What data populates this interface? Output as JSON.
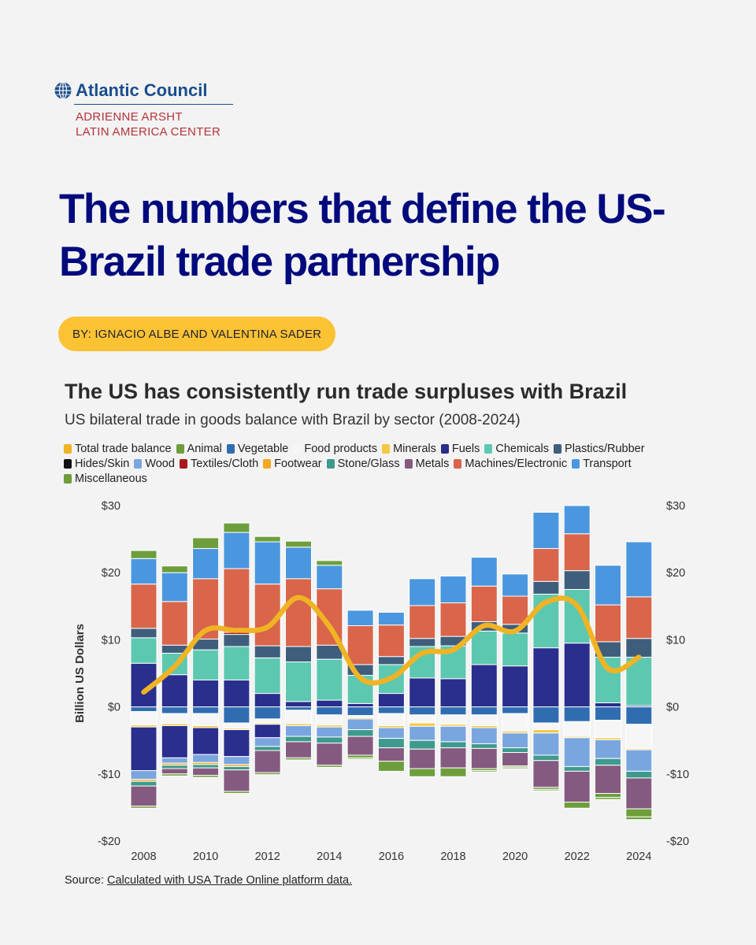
{
  "header": {
    "org_name": "Atlantic Council",
    "center_line1": "ADRIENNE ARSHT",
    "center_line2": "LATIN AMERICA CENTER",
    "headline": "The numbers that define the US-Brazil trade partnership",
    "byline": "BY: IGNACIO ALBE AND VALENTINA SADER"
  },
  "colors": {
    "brand_blue": "#1a4e8c",
    "headline": "#000a7d",
    "accent_red": "#b3343a",
    "byline_bg": "#fbc234",
    "balance_line": "#f0b323"
  },
  "chart_data": {
    "type": "bar",
    "stacked": true,
    "title": "The US has consistently run trade surpluses with Brazil",
    "subtitle": "US bilateral trade in goods balance with Brazil by sector (2008-2024)",
    "ylabel": "Billion US Dollars",
    "ylim": [
      -20,
      30
    ],
    "yticks": [
      -20,
      -10,
      0,
      10,
      20,
      30
    ],
    "ytick_labels": [
      "-$20",
      "-$10",
      "$0",
      "$10",
      "$20",
      "$30"
    ],
    "x_tick_labels": [
      "2008",
      "2010",
      "2012",
      "2014",
      "2016",
      "2018",
      "2020",
      "2022",
      "2024"
    ],
    "categories": [
      2008,
      2009,
      2010,
      2011,
      2012,
      2013,
      2014,
      2015,
      2016,
      2017,
      2018,
      2019,
      2020,
      2021,
      2022,
      2023,
      2024
    ],
    "legend_position": "top-left",
    "legend": [
      {
        "name": "Total trade balance",
        "color": "#f0b323"
      },
      {
        "name": "Animal",
        "color": "#6e9e3c"
      },
      {
        "name": "Vegetable",
        "color": "#2f6db0"
      },
      {
        "name": "Food products",
        "color": "#f6f6f6"
      },
      {
        "name": "Minerals",
        "color": "#f5c842"
      },
      {
        "name": "Fuels",
        "color": "#2a2e8c"
      },
      {
        "name": "Chemicals",
        "color": "#5dc8b0"
      },
      {
        "name": "Plastics/Rubber",
        "color": "#3e5e7c"
      },
      {
        "name": "Hides/Skin",
        "color": "#111111"
      },
      {
        "name": "Wood",
        "color": "#7aa6e0"
      },
      {
        "name": "Textiles/Cloth",
        "color": "#a8191c"
      },
      {
        "name": "Footwear",
        "color": "#f5a623"
      },
      {
        "name": "Stone/Glass",
        "color": "#3e9a8c"
      },
      {
        "name": "Metals",
        "color": "#855a80"
      },
      {
        "name": "Machines/Electronic",
        "color": "#d9654a"
      },
      {
        "name": "Transport",
        "color": "#4a97e0"
      },
      {
        "name": "Miscellaneous",
        "color": "#6e9e3c"
      }
    ],
    "series": [
      {
        "name": "Vegetable",
        "values": [
          -0.7,
          -1.0,
          -1.0,
          -2.4,
          -1.8,
          -0.5,
          -1.2,
          -1.3,
          -1.0,
          -1.2,
          -1.2,
          -1.2,
          -1.0,
          -2.4,
          -2.2,
          -2.0,
          -2.6
        ]
      },
      {
        "name": "Food products",
        "values": [
          -2.0,
          -1.5,
          -1.8,
          -0.8,
          -0.6,
          -2.0,
          -1.5,
          -0.3,
          -1.8,
          -1.2,
          -1.4,
          -1.6,
          -2.6,
          -1.0,
          -2.2,
          -2.6,
          -3.6
        ]
      },
      {
        "name": "Minerals",
        "values": [
          -0.3,
          -0.3,
          -0.3,
          -0.2,
          -0.2,
          -0.3,
          -0.3,
          -0.2,
          -0.3,
          -0.5,
          -0.3,
          -0.3,
          -0.3,
          -0.5,
          -0.2,
          -0.3,
          -0.2
        ]
      },
      {
        "name": "Fuels",
        "values": [
          6.5,
          4.8,
          4.0,
          4.0,
          2.0,
          0.8,
          1.0,
          0.5,
          2.0,
          4.3,
          4.2,
          6.3,
          6.1,
          8.8,
          9.5,
          0.6,
          0.2
        ]
      },
      {
        "name": "Fuels",
        "values": [
          -6.5,
          -4.8,
          -4.0,
          -4.0,
          -2.0,
          0,
          0,
          0,
          0,
          0,
          0,
          0,
          0,
          0,
          0,
          0,
          0
        ]
      },
      {
        "name": "Chemicals",
        "values": [
          3.8,
          3.2,
          4.5,
          5.0,
          5.3,
          5.9,
          6.1,
          4.2,
          4.3,
          4.7,
          4.9,
          5.0,
          4.9,
          8.0,
          8.0,
          6.8,
          7.2
        ]
      },
      {
        "name": "Plastics/Rubber",
        "values": [
          1.4,
          1.2,
          1.6,
          1.8,
          1.8,
          2.3,
          2.1,
          1.6,
          1.2,
          1.2,
          1.4,
          1.4,
          1.3,
          1.9,
          2.8,
          2.3,
          2.8
        ]
      },
      {
        "name": "Textiles/Cloth",
        "values": [
          0,
          0,
          0,
          0.3,
          0,
          0,
          0,
          0,
          0,
          0,
          0,
          0,
          0,
          0,
          0,
          0,
          0
        ]
      },
      {
        "name": "Wood",
        "values": [
          -1.3,
          -0.8,
          -1.2,
          -1.2,
          -1.3,
          -1.6,
          -1.5,
          -1.6,
          -1.6,
          -2.1,
          -2.3,
          -2.4,
          -2.2,
          -3.3,
          -4.3,
          -2.8,
          -3.2
        ]
      },
      {
        "name": "Footwear",
        "values": [
          -0.3,
          -0.3,
          -0.3,
          -0.3,
          0,
          0,
          0,
          0,
          0,
          0,
          0,
          0,
          0,
          0,
          0,
          0,
          0
        ]
      },
      {
        "name": "Stone/Glass",
        "values": [
          -0.7,
          -0.5,
          -0.5,
          -0.5,
          -0.6,
          -0.8,
          -0.9,
          -1.0,
          -1.4,
          -1.3,
          -0.9,
          -0.7,
          -0.7,
          -0.8,
          -0.7,
          -1.0,
          -1.0
        ]
      },
      {
        "name": "Metals",
        "values": [
          -3.0,
          -0.8,
          -1.1,
          -3.2,
          -3.3,
          -2.4,
          -3.3,
          -2.8,
          -2.0,
          -2.9,
          -3.0,
          -3.0,
          -2.0,
          -4.0,
          -4.6,
          -4.2,
          -4.6
        ]
      },
      {
        "name": "Machines/Electronic",
        "values": [
          6.6,
          6.5,
          9.0,
          9.5,
          9.2,
          10.1,
          8.4,
          5.8,
          4.7,
          4.9,
          5.0,
          5.3,
          4.2,
          4.9,
          5.5,
          5.5,
          6.2
        ]
      },
      {
        "name": "Transport",
        "values": [
          3.8,
          4.3,
          4.5,
          5.4,
          6.3,
          4.7,
          3.5,
          2.3,
          1.9,
          4.0,
          4.0,
          4.3,
          3.3,
          5.4,
          4.2,
          5.9,
          8.2
        ]
      },
      {
        "name": "Animal",
        "values": [
          -0.3,
          -0.3,
          -0.3,
          -0.3,
          -0.3,
          -0.3,
          -0.3,
          -0.4,
          -1.5,
          -1.2,
          -1.3,
          -0.3,
          -0.2,
          -0.3,
          -0.9,
          -0.6,
          -1.2
        ]
      },
      {
        "name": "Miscellaneous",
        "values": [
          1.2,
          1.0,
          1.6,
          1.4,
          0.8,
          0.9,
          0.7,
          0,
          0,
          0,
          0,
          0,
          0,
          0,
          0,
          0,
          0
        ]
      },
      {
        "name": "Miscellaneous",
        "values": [
          0,
          0,
          0,
          0,
          0,
          0,
          0,
          -0.2,
          0,
          0,
          0,
          -0.2,
          -0.2,
          -0.2,
          0,
          -0.3,
          -0.4
        ]
      }
    ],
    "line": {
      "name": "Total trade balance",
      "values": [
        2.2,
        6.0,
        11.4,
        11.4,
        11.9,
        16.3,
        12.0,
        4.3,
        4.3,
        8.0,
        8.5,
        12.1,
        11.3,
        15.6,
        15.1,
        5.7,
        7.4
      ]
    }
  },
  "source": {
    "prefix": "Source: ",
    "link_text": "Calculated with USA Trade Online platform data."
  }
}
